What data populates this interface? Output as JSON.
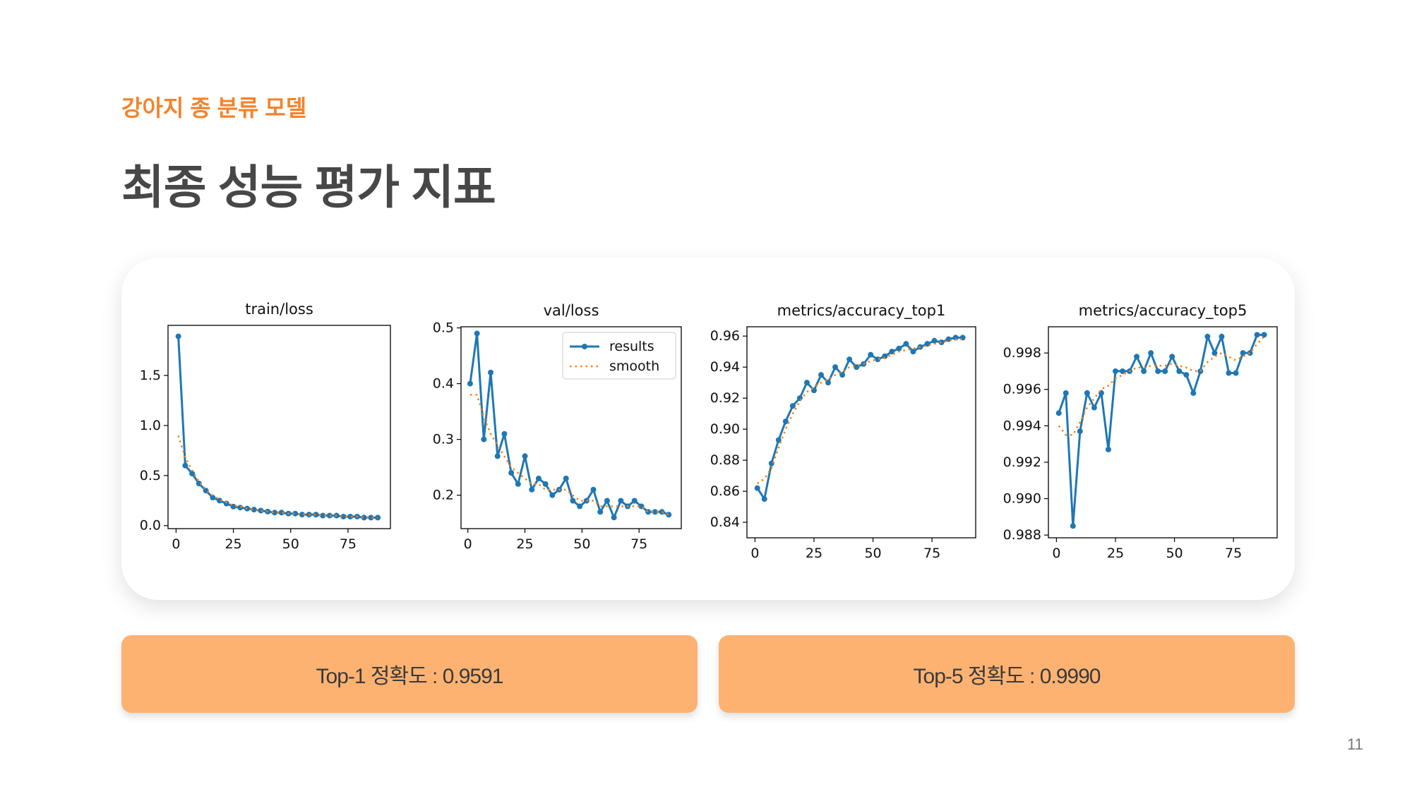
{
  "header": {
    "subtitle": "강아지 종 분류 모델",
    "title": "최종 성능 평가 지표"
  },
  "chart_data": [
    {
      "type": "line",
      "title": "train/loss",
      "xlim": [
        -3.5,
        93.5
      ],
      "ylim": [
        -0.03,
        2.0
      ],
      "xticks": [
        0,
        25,
        50,
        75
      ],
      "yticks": [
        {
          "value": 0,
          "label": "0.0"
        },
        0.5,
        {
          "value": 1,
          "label": "1.0"
        },
        1.5
      ],
      "x": [
        1,
        4,
        7,
        10,
        13,
        16,
        19,
        22,
        25,
        28,
        31,
        34,
        37,
        40,
        43,
        46,
        49,
        52,
        55,
        58,
        61,
        64,
        67,
        70,
        73,
        76,
        79,
        82,
        85,
        88
      ],
      "series": [
        {
          "color": "#1f77b4",
          "style": "solid-marker",
          "values": [
            1.89,
            0.6,
            0.52,
            0.42,
            0.35,
            0.28,
            0.25,
            0.22,
            0.19,
            0.18,
            0.17,
            0.16,
            0.15,
            0.14,
            0.13,
            0.13,
            0.12,
            0.12,
            0.11,
            0.11,
            0.11,
            0.1,
            0.1,
            0.1,
            0.09,
            0.09,
            0.09,
            0.08,
            0.08,
            0.08
          ]
        },
        {
          "color": "#ff7f0e",
          "style": "dotted",
          "values": [
            0.9,
            0.68,
            0.55,
            0.44,
            0.36,
            0.3,
            0.26,
            0.23,
            0.2,
            0.19,
            0.17,
            0.16,
            0.15,
            0.14,
            0.13,
            0.13,
            0.12,
            0.12,
            0.11,
            0.11,
            0.11,
            0.1,
            0.1,
            0.1,
            0.09,
            0.09,
            0.09,
            0.08,
            0.08,
            0.08
          ]
        }
      ]
    },
    {
      "type": "line",
      "title": "val/loss",
      "xlim": [
        -3,
        93.5
      ],
      "ylim": [
        0.14,
        0.502
      ],
      "xticks": [
        0,
        25,
        50,
        75
      ],
      "yticks": [
        0.2,
        0.3,
        0.4,
        0.5
      ],
      "legend": "upper right",
      "x": [
        1,
        4,
        7,
        10,
        13,
        16,
        19,
        22,
        25,
        28,
        31,
        34,
        37,
        40,
        43,
        46,
        49,
        52,
        55,
        58,
        61,
        64,
        67,
        70,
        73,
        76,
        79,
        82,
        85,
        88
      ],
      "series": [
        {
          "name": "results",
          "color": "#1f77b4",
          "style": "solid-marker",
          "values": [
            0.4,
            0.49,
            0.3,
            0.42,
            0.27,
            0.31,
            0.24,
            0.22,
            0.27,
            0.21,
            0.23,
            0.22,
            0.2,
            0.21,
            0.23,
            0.19,
            0.18,
            0.19,
            0.21,
            0.17,
            0.19,
            0.16,
            0.19,
            0.18,
            0.19,
            0.18,
            0.17,
            0.17,
            0.17,
            0.165
          ]
        },
        {
          "name": "smooth",
          "color": "#ff7f0e",
          "style": "dotted",
          "values": [
            0.38,
            0.38,
            0.34,
            0.31,
            0.29,
            0.27,
            0.25,
            0.24,
            0.23,
            0.22,
            0.22,
            0.21,
            0.21,
            0.21,
            0.21,
            0.2,
            0.19,
            0.19,
            0.19,
            0.18,
            0.18,
            0.18,
            0.18,
            0.18,
            0.18,
            0.18,
            0.17,
            0.17,
            0.17,
            0.165
          ]
        }
      ]
    },
    {
      "type": "line",
      "title": "metrics/accuracy_top1",
      "xlim": [
        -3.4,
        93.5
      ],
      "ylim": [
        0.83,
        0.966
      ],
      "xticks": [
        0,
        25,
        50,
        75
      ],
      "yticks": [
        0.84,
        0.86,
        0.88,
        {
          "value": 0.9,
          "label": "0.90"
        },
        0.92,
        0.94,
        0.96
      ],
      "x": [
        1,
        4,
        7,
        10,
        13,
        16,
        19,
        22,
        25,
        28,
        31,
        34,
        37,
        40,
        43,
        46,
        49,
        52,
        55,
        58,
        61,
        64,
        67,
        70,
        73,
        76,
        79,
        82,
        85,
        88
      ],
      "series": [
        {
          "color": "#1f77b4",
          "style": "solid-marker",
          "values": [
            0.862,
            0.855,
            0.878,
            0.893,
            0.905,
            0.915,
            0.92,
            0.93,
            0.925,
            0.935,
            0.93,
            0.94,
            0.935,
            0.945,
            0.94,
            0.942,
            0.948,
            0.945,
            0.947,
            0.95,
            0.952,
            0.955,
            0.95,
            0.953,
            0.955,
            0.957,
            0.956,
            0.958,
            0.959,
            0.959
          ]
        },
        {
          "color": "#ff7f0e",
          "style": "dotted",
          "values": [
            0.865,
            0.868,
            0.875,
            0.888,
            0.9,
            0.91,
            0.918,
            0.924,
            0.927,
            0.93,
            0.932,
            0.935,
            0.937,
            0.94,
            0.941,
            0.942,
            0.944,
            0.945,
            0.946,
            0.948,
            0.95,
            0.951,
            0.952,
            0.953,
            0.954,
            0.955,
            0.956,
            0.957,
            0.958,
            0.958
          ]
        }
      ]
    },
    {
      "type": "line",
      "title": "metrics/accuracy_top5",
      "xlim": [
        -3.4,
        93.5
      ],
      "ylim": [
        0.98785,
        0.99944
      ],
      "xticks": [
        0,
        25,
        50,
        75
      ],
      "yticks": [
        0.988,
        {
          "value": 0.99,
          "label": "0.990"
        },
        0.992,
        0.994,
        0.996,
        0.998
      ],
      "x": [
        1,
        4,
        7,
        10,
        13,
        16,
        19,
        22,
        25,
        28,
        31,
        34,
        37,
        40,
        43,
        46,
        49,
        52,
        55,
        58,
        61,
        64,
        67,
        70,
        73,
        76,
        79,
        82,
        85,
        88
      ],
      "series": [
        {
          "color": "#1f77b4",
          "style": "solid-marker",
          "values": [
            0.9947,
            0.9958,
            0.9885,
            0.9937,
            0.9958,
            0.995,
            0.9958,
            0.9927,
            0.997,
            0.997,
            0.997,
            0.9978,
            0.997,
            0.998,
            0.997,
            0.997,
            0.9978,
            0.997,
            0.9968,
            0.9958,
            0.997,
            0.9989,
            0.998,
            0.9989,
            0.9969,
            0.9969,
            0.998,
            0.998,
            0.999,
            0.999
          ]
        },
        {
          "color": "#ff7f0e",
          "style": "dotted",
          "values": [
            0.994,
            0.9935,
            0.9935,
            0.9942,
            0.995,
            0.9955,
            0.996,
            0.9962,
            0.9966,
            0.9968,
            0.997,
            0.9972,
            0.9972,
            0.9973,
            0.9973,
            0.9973,
            0.9974,
            0.9973,
            0.9972,
            0.997,
            0.997,
            0.9975,
            0.9978,
            0.998,
            0.9978,
            0.9976,
            0.9978,
            0.998,
            0.9985,
            0.9989
          ]
        }
      ]
    }
  ],
  "metrics": [
    "Top-1 정확도 : 0.9591",
    "Top-5 정확도 : 0.9990"
  ],
  "page_number": "11"
}
